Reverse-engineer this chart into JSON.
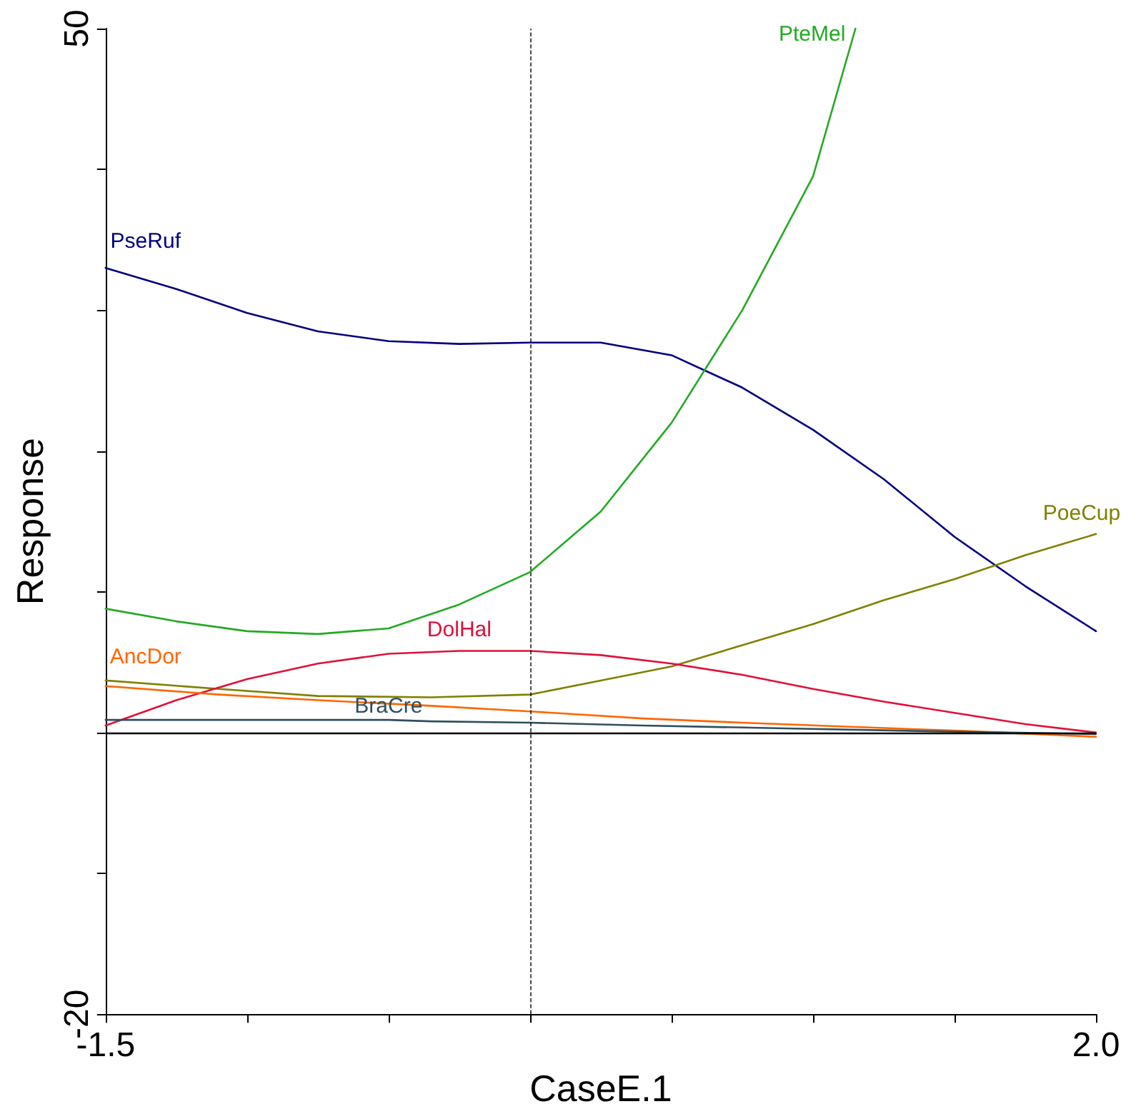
{
  "chart_data": {
    "type": "line",
    "xlabel": "CaseE.1",
    "ylabel": "Response",
    "xlim": [
      -1.5,
      2.0
    ],
    "xticks": [
      -1.5,
      {
        "value": -1.0,
        "label": null
      },
      {
        "value": -0.5,
        "label": null
      },
      {
        "value": 0,
        "label": null
      },
      {
        "value": 0.5,
        "label": null
      },
      {
        "value": 1.0,
        "label": null
      },
      {
        "value": 1.5,
        "label": null
      },
      {
        "value": 2.0,
        "label": "2.0"
      }
    ],
    "ylim": [
      -20,
      50
    ],
    "yticks": [
      -20,
      {
        "value": -10,
        "label": null
      },
      {
        "value": 0,
        "label": null
      },
      {
        "value": 10,
        "label": null
      },
      {
        "value": 20,
        "label": null
      },
      {
        "value": 30,
        "label": null
      },
      {
        "value": 40,
        "label": null
      },
      50
    ],
    "grid": false,
    "legend": false,
    "marker": "none",
    "line_style": "solid",
    "ref_lines": [
      {
        "axis": "y",
        "value": 0,
        "color": "#000000",
        "line_style": "solid"
      },
      {
        "axis": "x",
        "value": 0,
        "color": "#000000",
        "line_style": "dashed"
      }
    ],
    "series": [
      {
        "name": "PseRuf",
        "color": "#000080",
        "x": [
          -1.5,
          -1.25,
          -1.0,
          -0.75,
          -0.5,
          -0.25,
          0,
          0.25,
          0.5,
          0.75,
          1.0,
          1.25,
          1.5,
          1.75,
          2.0
        ],
        "values": [
          33.0,
          31.5,
          29.8,
          28.5,
          27.8,
          27.6,
          27.7,
          27.7,
          26.8,
          24.5,
          21.5,
          18.0,
          13.9,
          10.4,
          7.2
        ]
      },
      {
        "name": "PteMel",
        "color": "#22aa22",
        "x": [
          -1.5,
          -1.25,
          -1.0,
          -0.75,
          -0.5,
          -0.25,
          0,
          0.25,
          0.5,
          0.75,
          1.0,
          1.15
        ],
        "values": [
          8.8,
          7.9,
          7.2,
          7.0,
          7.4,
          9.1,
          11.4,
          15.7,
          22.0,
          30.0,
          39.5,
          50
        ]
      },
      {
        "name": "PoeCup",
        "color": "#808000",
        "x": [
          -1.5,
          -1.1,
          -0.75,
          -0.35,
          0,
          0.25,
          0.5,
          0.75,
          1.0,
          1.25,
          1.5,
          1.75,
          2.0
        ],
        "values": [
          3.7,
          3.1,
          2.6,
          2.5,
          2.7,
          3.7,
          4.7,
          6.2,
          7.7,
          9.4,
          10.9,
          12.6,
          14.1
        ]
      },
      {
        "name": "DolHal",
        "color": "#e0103a",
        "x": [
          -1.5,
          -1.25,
          -1.0,
          -0.75,
          -0.5,
          -0.25,
          0,
          0.25,
          0.5,
          0.75,
          1.0,
          1.25,
          1.5,
          1.75,
          2.0
        ],
        "values": [
          0.5,
          2.3,
          3.8,
          4.9,
          5.6,
          5.8,
          5.8,
          5.5,
          4.9,
          4.1,
          3.1,
          2.2,
          1.4,
          0.6,
          0
        ]
      },
      {
        "name": "AncDor",
        "color": "#ff6600",
        "x": [
          -1.5,
          -1.1,
          -0.75,
          -0.35,
          0,
          0.4,
          0.75,
          1.15,
          1.55,
          2.0
        ],
        "values": [
          3.3,
          2.7,
          2.3,
          1.9,
          1.5,
          1.0,
          0.7,
          0.4,
          0.1,
          -0.3
        ]
      },
      {
        "name": "BraCre",
        "color": "#2f4f5f",
        "x": [
          -1.5,
          -0.85,
          -0.5,
          -0.35,
          0,
          0.4,
          0.9,
          1.4,
          2.0
        ],
        "values": [
          0.9,
          0.9,
          0.9,
          0.8,
          0.7,
          0.5,
          0.3,
          0.1,
          -0.1
        ]
      }
    ]
  }
}
